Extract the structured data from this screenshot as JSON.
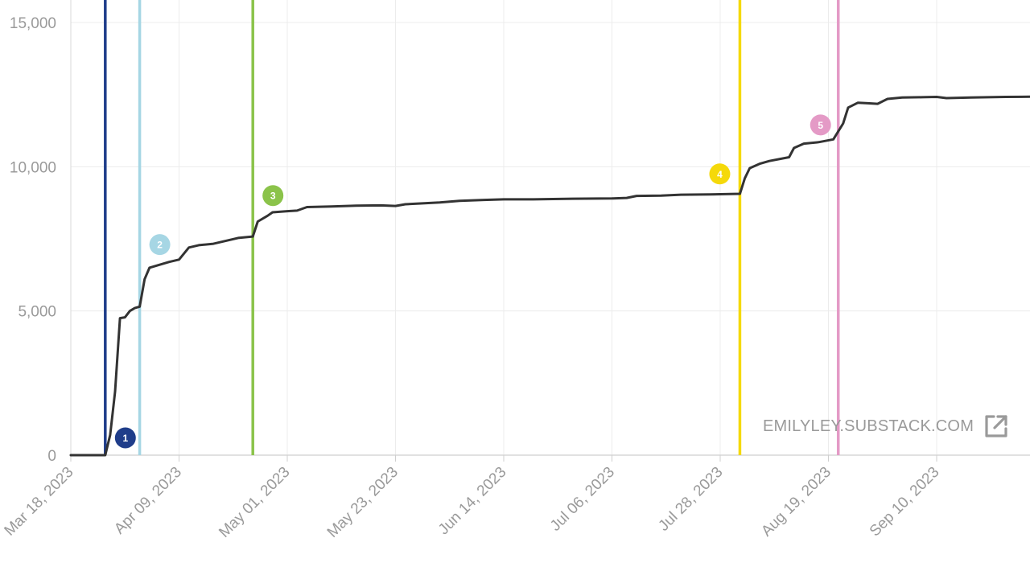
{
  "chart_data": {
    "type": "line",
    "title": "",
    "xlabel": "",
    "ylabel": "",
    "x_start": "2023-03-18",
    "x_end": "2023-09-30",
    "ylim": [
      0,
      15000
    ],
    "y_ticks": [
      0,
      5000,
      10000,
      15000
    ],
    "y_tick_labels": [
      "0",
      "5,000",
      "10,000",
      "15,000"
    ],
    "x_ticks": [
      "2023-03-18",
      "2023-04-09",
      "2023-05-01",
      "2023-05-23",
      "2023-06-14",
      "2023-07-06",
      "2023-07-28",
      "2023-08-19",
      "2023-09-10"
    ],
    "x_tick_labels": [
      "Mar 18, 2023",
      "Apr 09, 2023",
      "May 01, 2023",
      "May 23, 2023",
      "Jun 14, 2023",
      "Jul 06, 2023",
      "Jul 28, 2023",
      "Aug 19, 2023",
      "Sep 10, 2023"
    ],
    "grid": true,
    "series": [
      {
        "color": "#333333",
        "points": [
          [
            "2023-03-18",
            0
          ],
          [
            "2023-03-25",
            0
          ],
          [
            "2023-03-26",
            700
          ],
          [
            "2023-03-27",
            2200
          ],
          [
            "2023-03-28",
            4750
          ],
          [
            "2023-03-29",
            4780
          ],
          [
            "2023-03-30",
            5000
          ],
          [
            "2023-03-31",
            5100
          ],
          [
            "2023-04-01",
            5150
          ],
          [
            "2023-04-02",
            6100
          ],
          [
            "2023-04-03",
            6500
          ],
          [
            "2023-04-05",
            6600
          ],
          [
            "2023-04-07",
            6700
          ],
          [
            "2023-04-09",
            6780
          ],
          [
            "2023-04-11",
            7200
          ],
          [
            "2023-04-13",
            7280
          ],
          [
            "2023-04-16",
            7330
          ],
          [
            "2023-04-19",
            7450
          ],
          [
            "2023-04-21",
            7530
          ],
          [
            "2023-04-24",
            7580
          ],
          [
            "2023-04-25",
            8100
          ],
          [
            "2023-04-27",
            8300
          ],
          [
            "2023-04-28",
            8420
          ],
          [
            "2023-05-01",
            8460
          ],
          [
            "2023-05-03",
            8480
          ],
          [
            "2023-05-05",
            8600
          ],
          [
            "2023-05-10",
            8620
          ],
          [
            "2023-05-15",
            8650
          ],
          [
            "2023-05-20",
            8660
          ],
          [
            "2023-05-23",
            8640
          ],
          [
            "2023-05-25",
            8700
          ],
          [
            "2023-06-01",
            8760
          ],
          [
            "2023-06-05",
            8820
          ],
          [
            "2023-06-10",
            8850
          ],
          [
            "2023-06-14",
            8870
          ],
          [
            "2023-06-20",
            8870
          ],
          [
            "2023-06-28",
            8890
          ],
          [
            "2023-07-06",
            8900
          ],
          [
            "2023-07-09",
            8920
          ],
          [
            "2023-07-11",
            8990
          ],
          [
            "2023-07-16",
            9000
          ],
          [
            "2023-07-20",
            9030
          ],
          [
            "2023-07-26",
            9040
          ],
          [
            "2023-08-01",
            9060
          ],
          [
            "2023-08-02",
            9600
          ],
          [
            "2023-08-03",
            9950
          ],
          [
            "2023-08-05",
            10100
          ],
          [
            "2023-08-07",
            10200
          ],
          [
            "2023-08-11",
            10330
          ],
          [
            "2023-08-12",
            10650
          ],
          [
            "2023-08-14",
            10800
          ],
          [
            "2023-08-17",
            10850
          ],
          [
            "2023-08-20",
            10950
          ],
          [
            "2023-08-22",
            11500
          ],
          [
            "2023-08-23",
            12050
          ],
          [
            "2023-08-25",
            12220
          ],
          [
            "2023-08-27",
            12200
          ],
          [
            "2023-08-29",
            12180
          ],
          [
            "2023-08-31",
            12350
          ],
          [
            "2023-09-03",
            12400
          ],
          [
            "2023-09-07",
            12410
          ],
          [
            "2023-09-10",
            12420
          ],
          [
            "2023-09-12",
            12380
          ],
          [
            "2023-09-17",
            12400
          ],
          [
            "2023-09-24",
            12420
          ],
          [
            "2023-09-30",
            12430
          ]
        ]
      }
    ],
    "events": [
      {
        "label": "1",
        "date": "2023-03-25",
        "color": "#1f3d8a",
        "badge_y": 600
      },
      {
        "label": "2",
        "date": "2023-04-01",
        "color": "#a6d6e4",
        "badge_y": 7300
      },
      {
        "label": "3",
        "date": "2023-04-24",
        "color": "#8bc34a",
        "badge_y": 9000
      },
      {
        "label": "4",
        "date": "2023-08-01",
        "color": "#f5d90a",
        "badge_y": 9750
      },
      {
        "label": "5",
        "date": "2023-08-21",
        "color": "#e49ac6",
        "badge_y": 11450
      }
    ],
    "watermark": "EMILYLEY.SUBSTACK.COM"
  }
}
